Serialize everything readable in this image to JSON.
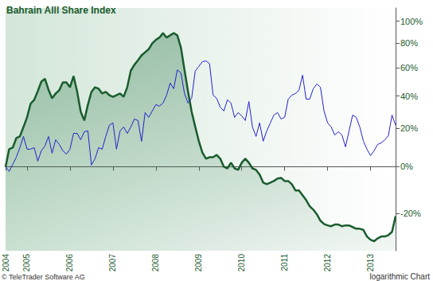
{
  "chart_data": {
    "type": "line",
    "title": "Bahrain Alll Share Index",
    "annotations": [
      "© TeleTrader Software AG",
      "logarithmic Chart"
    ],
    "categories": [
      "2004",
      null,
      null,
      null,
      null,
      null,
      "2005",
      null,
      null,
      null,
      null,
      null,
      null,
      null,
      null,
      null,
      null,
      null,
      "2006",
      null,
      null,
      null,
      null,
      null,
      null,
      null,
      null,
      null,
      null,
      null,
      "2007",
      null,
      null,
      null,
      null,
      null,
      null,
      null,
      null,
      null,
      null,
      null,
      "2008",
      null,
      null,
      null,
      null,
      null,
      null,
      null,
      null,
      null,
      null,
      null,
      "2009",
      null,
      null,
      null,
      null,
      null,
      null,
      null,
      null,
      null,
      null,
      null,
      "2010",
      null,
      null,
      null,
      null,
      null,
      null,
      null,
      null,
      null,
      null,
      null,
      "2011",
      null,
      null,
      null,
      null,
      null,
      null,
      null,
      null,
      null,
      null,
      null,
      "2012",
      null,
      null,
      null,
      null,
      null,
      null,
      null,
      null,
      null,
      null,
      null,
      "2013",
      null,
      null,
      null,
      null,
      null,
      null,
      null
    ],
    "series": [
      {
        "color": "#1a5c2e",
        "values": [
          0,
          8.7,
          9.5,
          14.6,
          15.5,
          20.8,
          26.5,
          35,
          37.5,
          43.3,
          50,
          52,
          44.3,
          38.5,
          41.7,
          43.9,
          49.4,
          49.4,
          46,
          54,
          43,
          30,
          24.6,
          34.3,
          42.8,
          46,
          45,
          41.7,
          42.8,
          40.6,
          39.5,
          40.6,
          41.7,
          39.5,
          46,
          58,
          62.5,
          66,
          70,
          72.5,
          75,
          80,
          83,
          85,
          89,
          85,
          87,
          89,
          87,
          76.5,
          58.6,
          43,
          30,
          21,
          13,
          7,
          3.9,
          4.6,
          4.6,
          5.8,
          3.9,
          0,
          -0.8,
          1.9,
          -0.8,
          -1.5,
          1.9,
          3.9,
          1.9,
          -0.8,
          -1.5,
          -3.7,
          -7.3,
          -8,
          -7.3,
          -6.6,
          -5.5,
          -5.2,
          -6.6,
          -6.6,
          -8,
          -10.7,
          -10.7,
          -12.7,
          -14.7,
          -17.2,
          -18.5,
          -20.3,
          -22.7,
          -23.9,
          -24.4,
          -24.7,
          -24.1,
          -24.1,
          -24.7,
          -24.4,
          -24.4,
          -25,
          -25.6,
          -25.6,
          -26,
          -28.3,
          -29.4,
          -29.9,
          -28.9,
          -28.3,
          -28.3,
          -27.8,
          -26.7,
          -21
        ]
      },
      {
        "color": "#2222cc",
        "values": [
          0,
          -2.2,
          1.1,
          4.6,
          9.5,
          15.5,
          8.7,
          8.7,
          9.5,
          2.7,
          7.9,
          10.3,
          15.5,
          6.6,
          13.7,
          11.2,
          7.9,
          6.2,
          8.7,
          17.2,
          17.2,
          13.7,
          18.1,
          18.6,
          0.8,
          3.9,
          9.5,
          8.7,
          15.5,
          21.8,
          23.2,
          8.7,
          18.6,
          20.8,
          17.2,
          20.8,
          25.5,
          24.6,
          12.9,
          29.4,
          26.5,
          30.4,
          34.4,
          33.4,
          35.4,
          40.6,
          48.9,
          45,
          58.6,
          56.3,
          41.7,
          35.4,
          38.5,
          57.6,
          61.2,
          64.9,
          65.5,
          63.4,
          40.6,
          38.5,
          32.8,
          30.4,
          37.5,
          35.4,
          26.5,
          29.4,
          27.4,
          24.6,
          36.4,
          20.8,
          15.5,
          23.2,
          12.9,
          18.6,
          23.2,
          27.9,
          29.4,
          25.5,
          26.5,
          38,
          40.6,
          41.7,
          43.9,
          54.6,
          38,
          38,
          45,
          48.3,
          46,
          30.4,
          23.2,
          20.8,
          16.3,
          18.1,
          16.3,
          9.9,
          18.6,
          27.9,
          26.5,
          20.8,
          12.9,
          8.7,
          5.4,
          7.9,
          11.2,
          12,
          13.7,
          16,
          27.9,
          21.8
        ]
      }
    ],
    "ylim": [
      -33,
      113
    ],
    "yticks": [
      {
        "value": -20,
        "label": "-20%"
      },
      {
        "value": 0,
        "label": "0%"
      },
      {
        "value": 20,
        "label": "20%"
      },
      {
        "value": 40,
        "label": "40%"
      },
      {
        "value": 60,
        "label": "60%"
      },
      {
        "value": 80,
        "label": "80%"
      },
      {
        "value": 100,
        "label": "100%"
      }
    ],
    "log": "y",
    "grid": false
  }
}
